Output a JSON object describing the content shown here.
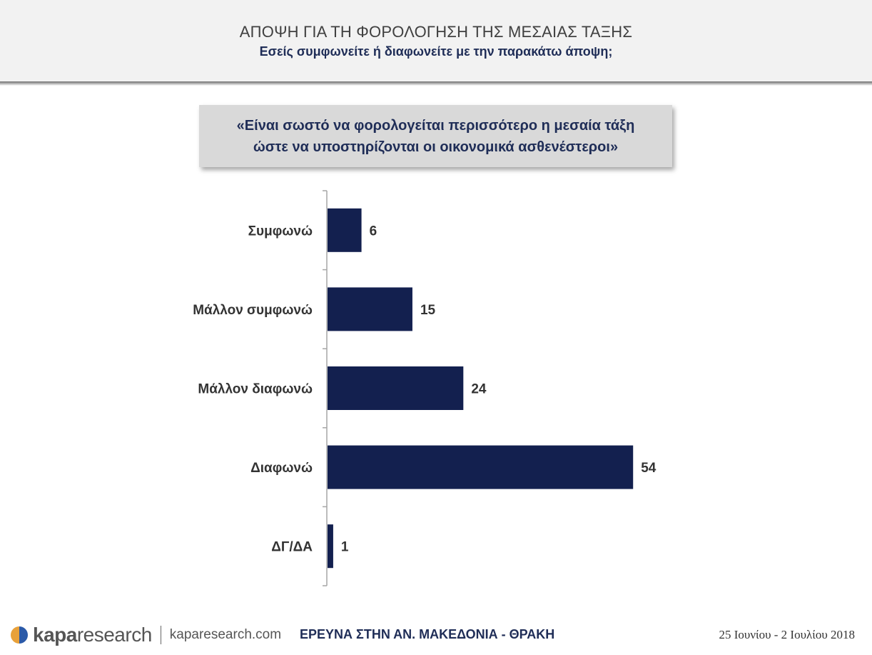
{
  "header": {
    "title": "ΑΠΟΨΗ ΓΙΑ ΤΗ ΦΟΡΟΛΟΓΗΣΗ ΤΗΣ ΜΕΣΑΙΑΣ ΤΑΞΗΣ",
    "subtitle": "Εσείς συμφωνείτε ή διαφωνείτε με την παρακάτω άποψη;"
  },
  "question": {
    "line1": "«Είναι σωστό να φορολογείται περισσότερο η μεσαία τάξη",
    "line2": "ώστε να υποστηρίζονται οι οικονομικά ασθενέστεροι»"
  },
  "chart_data": {
    "type": "bar",
    "orientation": "horizontal",
    "categories": [
      "Συμφωνώ",
      "Μάλλον συμφωνώ",
      "Μάλλον διαφωνώ",
      "Διαφωνώ",
      "ΔΓ/ΔΑ"
    ],
    "values": [
      6,
      15,
      24,
      54,
      1
    ],
    "xlim": [
      0,
      60
    ],
    "bar_color": "#13204f",
    "grid": false,
    "data_labels": true
  },
  "footer": {
    "logo_kapa": "kapa",
    "logo_research": "research",
    "url": "kaparesearch.com",
    "survey": "ΕΡΕΥΝΑ ΣΤΗΝ ΑΝ. ΜΑΚΕΔΟΝΙΑ - ΘΡΑΚΗ",
    "date": "25 Ιουνίου - 2 Ιουλίου 2018"
  },
  "colors": {
    "accent_navy": "#1f2d57",
    "logo_orange": "#e8a13a",
    "logo_blue": "#2b5aa8"
  }
}
